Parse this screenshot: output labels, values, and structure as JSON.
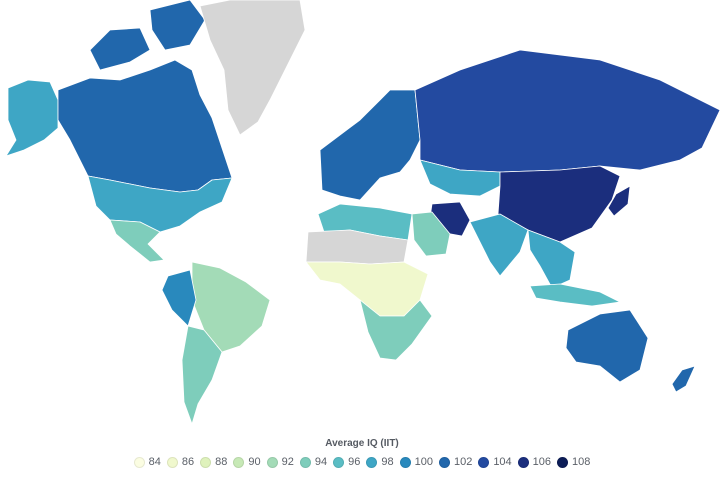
{
  "legend": {
    "title": "Average IQ (IIT)",
    "items": [
      {
        "label": "84",
        "color": "#fbfde2"
      },
      {
        "label": "86",
        "color": "#f0f8cd"
      },
      {
        "label": "88",
        "color": "#dff2bc"
      },
      {
        "label": "90",
        "color": "#c7e9b6"
      },
      {
        "label": "92",
        "color": "#a3dbb7"
      },
      {
        "label": "94",
        "color": "#7ecdbb"
      },
      {
        "label": "96",
        "color": "#5abdc4"
      },
      {
        "label": "98",
        "color": "#3ea6c5"
      },
      {
        "label": "100",
        "color": "#2989bd"
      },
      {
        "label": "102",
        "color": "#2167ac"
      },
      {
        "label": "104",
        "color": "#234aa0"
      },
      {
        "label": "106",
        "color": "#1b2e7d"
      },
      {
        "label": "108",
        "color": "#0c1d57"
      }
    ]
  },
  "no_data_color": "#d6d6d6",
  "regions": [
    {
      "name": "Canada",
      "value": 102
    },
    {
      "name": "Alaska (United States)",
      "value": 98
    },
    {
      "name": "United States",
      "value": 98
    },
    {
      "name": "Greenland",
      "value": null
    },
    {
      "name": "Mexico",
      "value": 94
    },
    {
      "name": "Brazil",
      "value": 92
    },
    {
      "name": "Peru",
      "value": 100
    },
    {
      "name": "Argentina",
      "value": 94
    },
    {
      "name": "Europe",
      "value": 102
    },
    {
      "name": "Russia",
      "value": 104
    },
    {
      "name": "Kazakhstan",
      "value": 98
    },
    {
      "name": "China",
      "value": 106
    },
    {
      "name": "Japan",
      "value": 106
    },
    {
      "name": "Iran",
      "value": 106
    },
    {
      "name": "India",
      "value": 98
    },
    {
      "name": "Southeast Asia",
      "value": 98
    },
    {
      "name": "Indonesia",
      "value": 96
    },
    {
      "name": "Australia",
      "value": 102
    },
    {
      "name": "New Zealand",
      "value": 102
    },
    {
      "name": "North Africa",
      "value": 96
    },
    {
      "name": "Arabian Peninsula",
      "value": 94
    },
    {
      "name": "Sahara (no data)",
      "value": null
    },
    {
      "name": "Central Africa",
      "value": 86
    },
    {
      "name": "Southern Africa",
      "value": 94
    }
  ]
}
